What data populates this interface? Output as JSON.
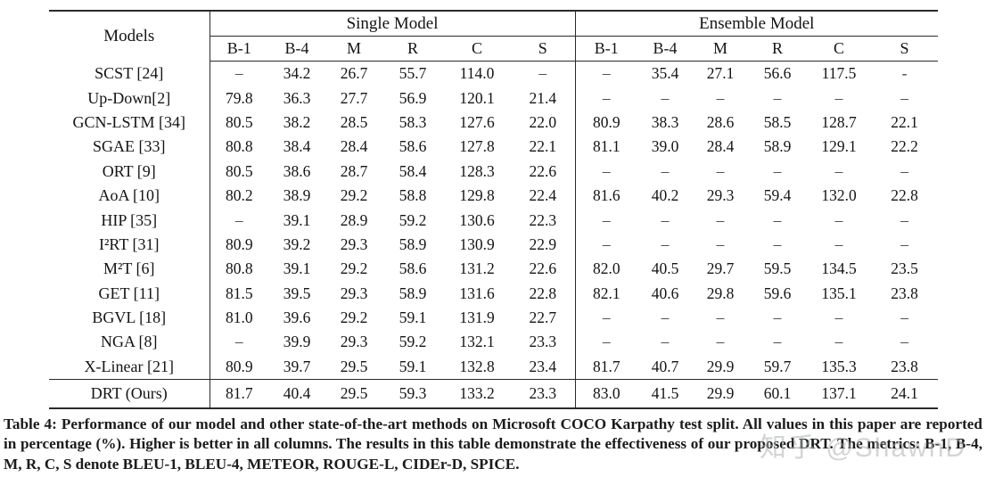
{
  "table": {
    "models_header": "Models",
    "groups": [
      {
        "label": "Single Model",
        "metrics": [
          "B-1",
          "B-4",
          "M",
          "R",
          "C",
          "S"
        ]
      },
      {
        "label": "Ensemble Model",
        "metrics": [
          "B-1",
          "B-4",
          "M",
          "R",
          "C",
          "S"
        ]
      }
    ],
    "rows": [
      {
        "model": "SCST [24]",
        "single": [
          "–",
          "34.2",
          "26.7",
          "55.7",
          "114.0",
          "–"
        ],
        "ensemble": [
          "–",
          "35.4",
          "27.1",
          "56.6",
          "117.5",
          "-"
        ]
      },
      {
        "model": "Up-Down[2]",
        "single": [
          "79.8",
          "36.3",
          "27.7",
          "56.9",
          "120.1",
          "21.4"
        ],
        "ensemble": [
          "–",
          "–",
          "–",
          "–",
          "–",
          "–"
        ]
      },
      {
        "model": "GCN-LSTM [34]",
        "single": [
          "80.5",
          "38.2",
          "28.5",
          "58.3",
          "127.6",
          "22.0"
        ],
        "ensemble": [
          "80.9",
          "38.3",
          "28.6",
          "58.5",
          "128.7",
          "22.1"
        ]
      },
      {
        "model": "SGAE [33]",
        "single": [
          "80.8",
          "38.4",
          "28.4",
          "58.6",
          "127.8",
          "22.1"
        ],
        "ensemble": [
          "81.1",
          "39.0",
          "28.4",
          "58.9",
          "129.1",
          "22.2"
        ]
      },
      {
        "model": "ORT [9]",
        "single": [
          "80.5",
          "38.6",
          "28.7",
          "58.4",
          "128.3",
          "22.6"
        ],
        "ensemble": [
          "–",
          "–",
          "–",
          "–",
          "–",
          "–"
        ]
      },
      {
        "model": "AoA [10]",
        "single": [
          "80.2",
          "38.9",
          "29.2",
          "58.8",
          "129.8",
          "22.4"
        ],
        "ensemble": [
          "81.6",
          "40.2",
          "29.3",
          "59.4",
          "132.0",
          "22.8"
        ]
      },
      {
        "model": "HIP [35]",
        "single": [
          "–",
          "39.1",
          "28.9",
          "59.2",
          "130.6",
          "22.3"
        ],
        "ensemble": [
          "–",
          "–",
          "–",
          "–",
          "–",
          "–"
        ]
      },
      {
        "model": "I²RT [31]",
        "single": [
          "80.9",
          "39.2",
          "29.3",
          "58.9",
          "130.9",
          "22.9"
        ],
        "ensemble": [
          "–",
          "–",
          "–",
          "–",
          "–",
          "–"
        ]
      },
      {
        "model": "M²T [6]",
        "single": [
          "80.8",
          "39.1",
          "29.2",
          "58.6",
          "131.2",
          "22.6"
        ],
        "ensemble": [
          "82.0",
          "40.5",
          "29.7",
          "59.5",
          "134.5",
          "23.5"
        ]
      },
      {
        "model": "GET [11]",
        "single": [
          "81.5",
          "39.5",
          "29.3",
          "58.9",
          "131.6",
          "22.8"
        ],
        "ensemble": [
          "82.1",
          "40.6",
          "29.8",
          "59.6",
          "135.1",
          "23.8"
        ]
      },
      {
        "model": "BGVL [18]",
        "single": [
          "81.0",
          "39.6",
          "29.2",
          "59.1",
          "131.9",
          "22.7"
        ],
        "ensemble": [
          "–",
          "–",
          "–",
          "–",
          "–",
          "–"
        ]
      },
      {
        "model": "NGA [8]",
        "single": [
          "–",
          "39.9",
          "29.3",
          "59.2",
          "132.1",
          "23.3"
        ],
        "ensemble": [
          "–",
          "–",
          "–",
          "–",
          "–",
          "–"
        ]
      },
      {
        "model": "X-Linear [21]",
        "single": [
          "80.9",
          "39.7",
          "29.5",
          "59.1",
          "132.8",
          "23.4"
        ],
        "single_bold": [
          2,
          5
        ],
        "ensemble": [
          "81.7",
          "40.7",
          "29.9",
          "59.7",
          "135.3",
          "23.8"
        ],
        "ensemble_bold": [
          2
        ]
      },
      {
        "model": "DRT (Ours)",
        "model_bold": true,
        "highlight_row": true,
        "single": [
          "81.7",
          "40.4",
          "29.5",
          "59.3",
          "133.2",
          "23.3"
        ],
        "single_bold": [
          0,
          1,
          2,
          3,
          4
        ],
        "ensemble": [
          "83.0",
          "41.5",
          "29.9",
          "60.1",
          "137.1",
          "24.1"
        ],
        "ensemble_bold": [
          0,
          1,
          2,
          3,
          4,
          5
        ]
      }
    ]
  },
  "caption": "Table 4: Performance of our model and other state-of-the-art methods on Microsoft COCO Karpathy test split. All values in this paper are reported in percentage (%). Higher is better in all columns. The results in this table demonstrate the effectiveness of our proposed DRT. The metrics: B-1, B-4, M, R, C, S denote BLEU-1, BLEU-4, METEOR, ROUGE-L, CIDEr-D, SPICE.",
  "watermark": "知乎 @ShawnD"
}
